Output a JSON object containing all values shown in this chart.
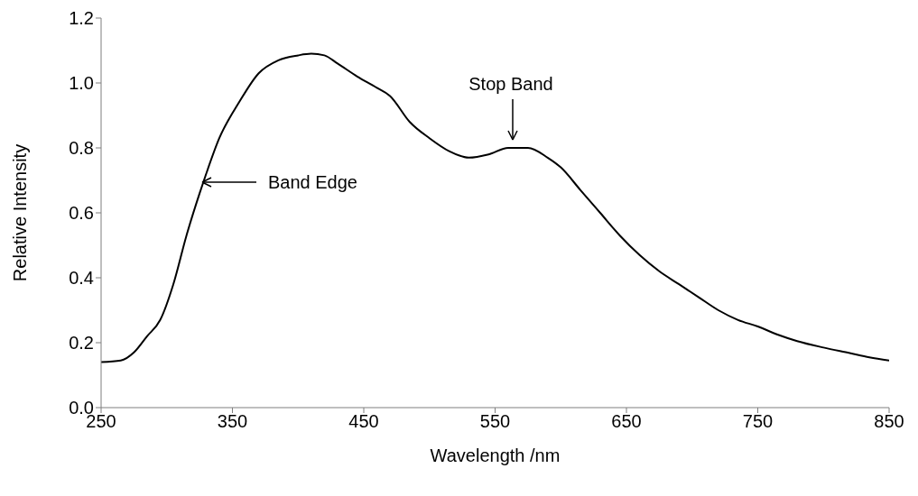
{
  "chart_data": {
    "type": "line",
    "xlabel": "Wavelength /nm",
    "ylabel": "Relative Intensity",
    "x": [
      250,
      265,
      275,
      285,
      295,
      305,
      315,
      325,
      330,
      340,
      355,
      370,
      385,
      400,
      410,
      420,
      430,
      445,
      460,
      470,
      485,
      500,
      515,
      530,
      545,
      560,
      575,
      590,
      600,
      615,
      630,
      645,
      660,
      675,
      690,
      705,
      720,
      735,
      750,
      765,
      780,
      800,
      820,
      835,
      850
    ],
    "series": [
      {
        "color": "#000000",
        "values": [
          0.14,
          0.145,
          0.17,
          0.22,
          0.27,
          0.38,
          0.53,
          0.66,
          0.72,
          0.83,
          0.94,
          1.03,
          1.07,
          1.085,
          1.09,
          1.085,
          1.06,
          1.02,
          0.985,
          0.96,
          0.88,
          0.83,
          0.79,
          0.77,
          0.78,
          0.8,
          0.8,
          0.77,
          0.74,
          0.67,
          0.6,
          0.53,
          0.47,
          0.42,
          0.38,
          0.34,
          0.3,
          0.27,
          0.25,
          0.225,
          0.205,
          0.185,
          0.168,
          0.155,
          0.145
        ]
      }
    ],
    "xlim": [
      250,
      850
    ],
    "xticks": [
      250,
      350,
      450,
      550,
      650,
      750,
      850
    ],
    "ylim": [
      0,
      1.2
    ],
    "yticks": [
      {
        "value": 0,
        "label": "0.0"
      },
      {
        "value": 0.2,
        "label": "0.2"
      },
      {
        "value": 0.4,
        "label": "0.4"
      },
      {
        "value": 0.6,
        "label": "0.6"
      },
      {
        "value": 0.8,
        "label": "0.8"
      },
      {
        "value": 1,
        "label": "1.0"
      },
      {
        "value": 1.2,
        "label": "1.2"
      }
    ],
    "grid": false,
    "legend": false,
    "marker": "none",
    "line_style": "solid",
    "annotations": [
      "Band Edge",
      "Stop Band"
    ]
  }
}
